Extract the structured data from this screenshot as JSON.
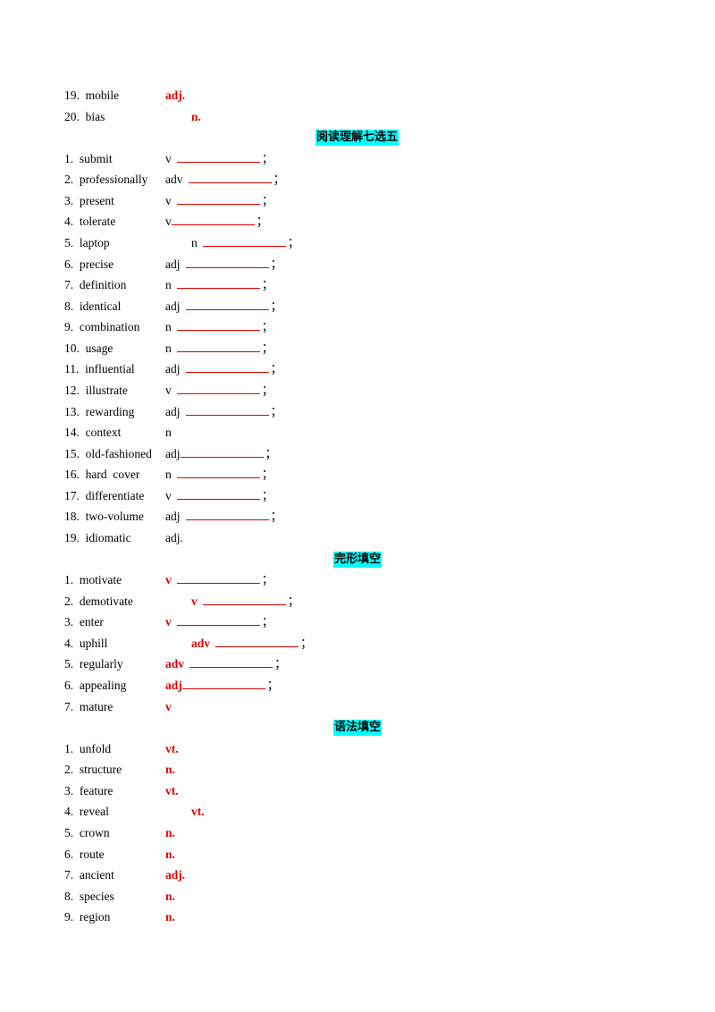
{
  "sections": [
    {
      "heading": "",
      "items": [
        {
          "label": "19.  mobile",
          "pos": "adj.",
          "style": "red",
          "indent": 113,
          "blank": false
        },
        {
          "label": "20.  bias",
          "pos": "n.",
          "style": "red",
          "indent": 142,
          "blank": false
        }
      ]
    },
    {
      "heading": "阅读理解七选五",
      "items": [
        {
          "label": "1.  submit",
          "pos": "v",
          "style": "black",
          "indent": 113,
          "blank": true
        },
        {
          "label": "2.  professionally",
          "pos": "adv",
          "style": "black",
          "indent": 113,
          "blank": true
        },
        {
          "label": "3.  present",
          "pos": "v",
          "style": "black",
          "indent": 113,
          "blank": true
        },
        {
          "label": "4.  tolerate",
          "pos": "v",
          "style": "black",
          "indent": 113,
          "blank": true,
          "tight": true
        },
        {
          "label": "5.  laptop",
          "pos": "n",
          "style": "black",
          "indent": 142,
          "blank": true
        },
        {
          "label": "6.  precise",
          "pos": "adj",
          "style": "black",
          "indent": 113,
          "blank": true
        },
        {
          "label": "7.  definition",
          "pos": "n",
          "style": "black",
          "indent": 113,
          "blank": true
        },
        {
          "label": "8.  identical",
          "pos": "adj",
          "style": "black",
          "indent": 113,
          "blank": true
        },
        {
          "label": "9.  combination",
          "pos": "n",
          "style": "black",
          "indent": 113,
          "blank": true
        },
        {
          "label": "10.  usage",
          "pos": "n",
          "style": "black",
          "indent": 113,
          "blank": true
        },
        {
          "label": "11.  influential",
          "pos": "adj",
          "style": "black",
          "indent": 113,
          "blank": true
        },
        {
          "label": "12.  illustrate",
          "pos": "v",
          "style": "black",
          "indent": 113,
          "blank": true
        },
        {
          "label": "13.  rewarding",
          "pos": "adj",
          "style": "black",
          "indent": 113,
          "blank": true
        },
        {
          "label": "14.  context",
          "pos": "n",
          "style": "black",
          "indent": 113,
          "blank": false
        },
        {
          "label": "15.  old-fashioned",
          "pos": "adj",
          "style": "black",
          "indent": 113,
          "blank": true,
          "tight": true
        },
        {
          "label": "16.  hard  cover",
          "pos": "n",
          "style": "black",
          "indent": 113,
          "blank": true
        },
        {
          "label": "17.  differentiate",
          "pos": "v",
          "style": "black",
          "indent": 113,
          "blank": true
        },
        {
          "label": "18.  two-volume",
          "pos": "adj",
          "style": "black",
          "indent": 113,
          "blank": true
        },
        {
          "label": "19.  idiomatic",
          "pos": "adj.",
          "style": "black",
          "indent": 113,
          "blank": false
        }
      ]
    },
    {
      "heading": "完形填空",
      "items": [
        {
          "label": "1.  motivate",
          "pos": "v",
          "style": "red",
          "indent": 113,
          "blank": true
        },
        {
          "label": "2.  demotivate",
          "pos": "v",
          "style": "red",
          "indent": 142,
          "blank": true
        },
        {
          "label": "3.  enter",
          "pos": "v",
          "style": "red",
          "indent": 113,
          "blank": true
        },
        {
          "label": "4.  uphill",
          "pos": "adv",
          "style": "red",
          "indent": 142,
          "blank": true
        },
        {
          "label": "5.  regularly",
          "pos": "adv",
          "style": "red",
          "indent": 113,
          "blank": true
        },
        {
          "label": "6.  appealing",
          "pos": "adj",
          "style": "red",
          "indent": 113,
          "blank": true,
          "tight": true
        },
        {
          "label": "7.  mature",
          "pos": "v",
          "style": "red",
          "indent": 113,
          "blank": false
        }
      ]
    },
    {
      "heading": "语法填空",
      "items": [
        {
          "label": "1.  unfold",
          "pos": "vt.",
          "style": "red",
          "indent": 113,
          "blank": false
        },
        {
          "label": "2.  structure",
          "pos": "n.",
          "style": "red",
          "indent": 113,
          "blank": false
        },
        {
          "label": "3.  feature",
          "pos": "vt.",
          "style": "red",
          "indent": 113,
          "blank": false
        },
        {
          "label": "4.  reveal",
          "pos": "vt.",
          "style": "red",
          "indent": 142,
          "blank": false
        },
        {
          "label": "5.  crown",
          "pos": "n.",
          "style": "red",
          "indent": 113,
          "blank": false
        },
        {
          "label": "6.  route",
          "pos": "n.",
          "style": "red",
          "indent": 113,
          "blank": false
        },
        {
          "label": "7.  ancient",
          "pos": "adj.",
          "style": "red",
          "indent": 113,
          "blank": false
        },
        {
          "label": "8.  species",
          "pos": "n.",
          "style": "red",
          "indent": 113,
          "blank": false
        },
        {
          "label": "9.  region",
          "pos": "n.",
          "style": "red",
          "indent": 113,
          "blank": false
        }
      ]
    }
  ],
  "blank_suffix": "；"
}
